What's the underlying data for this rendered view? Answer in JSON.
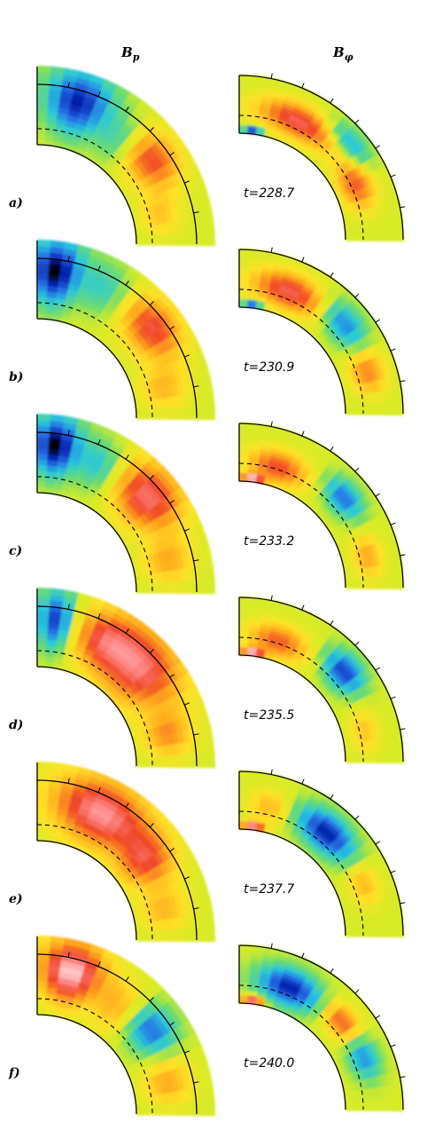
{
  "figure": {
    "columns": [
      {
        "key": "Bp",
        "symbol": "B",
        "subscript": "p"
      },
      {
        "key": "Bphi",
        "symbol": "B",
        "subscript": "φ"
      }
    ],
    "panels": [
      {
        "label": "a)",
        "time": "t=228.7",
        "left_blobs": [
          {
            "u": 0.18,
            "v": 0.62,
            "ru": 0.13,
            "rv": 0.38,
            "val": -0.85
          },
          {
            "u": 0.6,
            "v": 0.55,
            "ru": 0.13,
            "rv": 0.32,
            "val": 0.6
          },
          {
            "u": 0.42,
            "v": 0.45,
            "ru": 0.1,
            "rv": 0.3,
            "val": -0.25
          },
          {
            "u": 0.85,
            "v": 0.35,
            "ru": 0.1,
            "rv": 0.25,
            "val": 0.25
          }
        ],
        "right_blobs": [
          {
            "u": 0.3,
            "v": 0.45,
            "ru": 0.2,
            "rv": 0.28,
            "val": 0.7
          },
          {
            "u": 0.55,
            "v": 0.7,
            "ru": 0.12,
            "rv": 0.22,
            "val": -0.45
          },
          {
            "u": 0.72,
            "v": 0.4,
            "ru": 0.12,
            "rv": 0.3,
            "val": 0.55
          },
          {
            "u": 0.08,
            "v": 0.07,
            "ru": 0.05,
            "rv": 0.07,
            "val": -0.9
          }
        ]
      },
      {
        "label": "b)",
        "time": "t=230.9",
        "left_blobs": [
          {
            "u": 0.08,
            "v": 0.62,
            "ru": 0.1,
            "rv": 0.38,
            "val": -1.0
          },
          {
            "u": 0.58,
            "v": 0.6,
            "ru": 0.14,
            "rv": 0.32,
            "val": 0.65
          },
          {
            "u": 0.3,
            "v": 0.6,
            "ru": 0.1,
            "rv": 0.3,
            "val": -0.3
          },
          {
            "u": 0.85,
            "v": 0.4,
            "ru": 0.1,
            "rv": 0.3,
            "val": 0.3
          }
        ],
        "right_blobs": [
          {
            "u": 0.25,
            "v": 0.45,
            "ru": 0.18,
            "rv": 0.3,
            "val": 0.7
          },
          {
            "u": 0.55,
            "v": 0.55,
            "ru": 0.12,
            "rv": 0.28,
            "val": -0.55
          },
          {
            "u": 0.8,
            "v": 0.5,
            "ru": 0.1,
            "rv": 0.3,
            "val": 0.45
          },
          {
            "u": 0.08,
            "v": 0.07,
            "ru": 0.05,
            "rv": 0.07,
            "val": -0.8
          }
        ]
      },
      {
        "label": "c)",
        "time": "t=233.2",
        "left_blobs": [
          {
            "u": 0.08,
            "v": 0.62,
            "ru": 0.09,
            "rv": 0.35,
            "val": -1.0
          },
          {
            "u": 0.55,
            "v": 0.6,
            "ru": 0.15,
            "rv": 0.38,
            "val": 0.75
          },
          {
            "u": 0.28,
            "v": 0.55,
            "ru": 0.1,
            "rv": 0.3,
            "val": -0.35
          },
          {
            "u": 0.85,
            "v": 0.45,
            "ru": 0.1,
            "rv": 0.3,
            "val": 0.35
          }
        ],
        "right_blobs": [
          {
            "u": 0.2,
            "v": 0.35,
            "ru": 0.15,
            "rv": 0.28,
            "val": 0.6
          },
          {
            "u": 0.55,
            "v": 0.55,
            "ru": 0.1,
            "rv": 0.25,
            "val": -0.6
          },
          {
            "u": 0.85,
            "v": 0.45,
            "ru": 0.1,
            "rv": 0.25,
            "val": 0.35
          },
          {
            "u": 0.08,
            "v": 0.07,
            "ru": 0.06,
            "rv": 0.08,
            "val": 0.95
          }
        ]
      },
      {
        "label": "d)",
        "time": "t=235.5",
        "left_blobs": [
          {
            "u": 0.08,
            "v": 0.62,
            "ru": 0.07,
            "rv": 0.35,
            "val": -0.75
          },
          {
            "u": 0.5,
            "v": 0.55,
            "ru": 0.2,
            "rv": 0.45,
            "val": 0.8
          },
          {
            "u": 0.3,
            "v": 0.55,
            "ru": 0.12,
            "rv": 0.35,
            "val": 0.45
          },
          {
            "u": 0.85,
            "v": 0.45,
            "ru": 0.1,
            "rv": 0.3,
            "val": 0.4
          }
        ],
        "right_blobs": [
          {
            "u": 0.2,
            "v": 0.35,
            "ru": 0.15,
            "rv": 0.28,
            "val": 0.55
          },
          {
            "u": 0.55,
            "v": 0.55,
            "ru": 0.1,
            "rv": 0.28,
            "val": -0.75
          },
          {
            "u": 0.85,
            "v": 0.4,
            "ru": 0.1,
            "rv": 0.25,
            "val": 0.25
          },
          {
            "u": 0.08,
            "v": 0.07,
            "ru": 0.06,
            "rv": 0.08,
            "val": 0.95
          }
        ]
      },
      {
        "label": "e)",
        "time": "t=237.7",
        "left_blobs": [
          {
            "u": 0.3,
            "v": 0.55,
            "ru": 0.22,
            "rv": 0.4,
            "val": 0.85
          },
          {
            "u": 0.6,
            "v": 0.45,
            "ru": 0.12,
            "rv": 0.35,
            "val": 0.55
          },
          {
            "u": 0.85,
            "v": 0.4,
            "ru": 0.1,
            "rv": 0.3,
            "val": 0.3
          }
        ],
        "right_blobs": [
          {
            "u": 0.15,
            "v": 0.45,
            "ru": 0.1,
            "rv": 0.28,
            "val": 0.3
          },
          {
            "u": 0.45,
            "v": 0.5,
            "ru": 0.15,
            "rv": 0.3,
            "val": -0.85
          },
          {
            "u": 0.75,
            "v": 0.5,
            "ru": 0.1,
            "rv": 0.25,
            "val": 0.3
          },
          {
            "u": 0.08,
            "v": 0.07,
            "ru": 0.06,
            "rv": 0.08,
            "val": 0.95
          }
        ]
      },
      {
        "label": "f)",
        "time": "t=240.0",
        "left_blobs": [
          {
            "u": 0.15,
            "v": 0.6,
            "ru": 0.13,
            "rv": 0.38,
            "val": 0.95
          },
          {
            "u": 0.6,
            "v": 0.55,
            "ru": 0.1,
            "rv": 0.28,
            "val": -0.6
          },
          {
            "u": 0.4,
            "v": 0.45,
            "ru": 0.1,
            "rv": 0.35,
            "val": 0.3
          },
          {
            "u": 0.85,
            "v": 0.45,
            "ru": 0.1,
            "rv": 0.3,
            "val": 0.35
          }
        ],
        "right_blobs": [
          {
            "u": 0.25,
            "v": 0.45,
            "ru": 0.15,
            "rv": 0.3,
            "val": -0.85
          },
          {
            "u": 0.55,
            "v": 0.5,
            "ru": 0.1,
            "rv": 0.25,
            "val": 0.55
          },
          {
            "u": 0.75,
            "v": 0.5,
            "ru": 0.1,
            "rv": 0.25,
            "val": -0.5
          },
          {
            "u": 0.08,
            "v": 0.07,
            "ru": 0.06,
            "rv": 0.08,
            "val": 0.95
          }
        ]
      }
    ]
  }
}
